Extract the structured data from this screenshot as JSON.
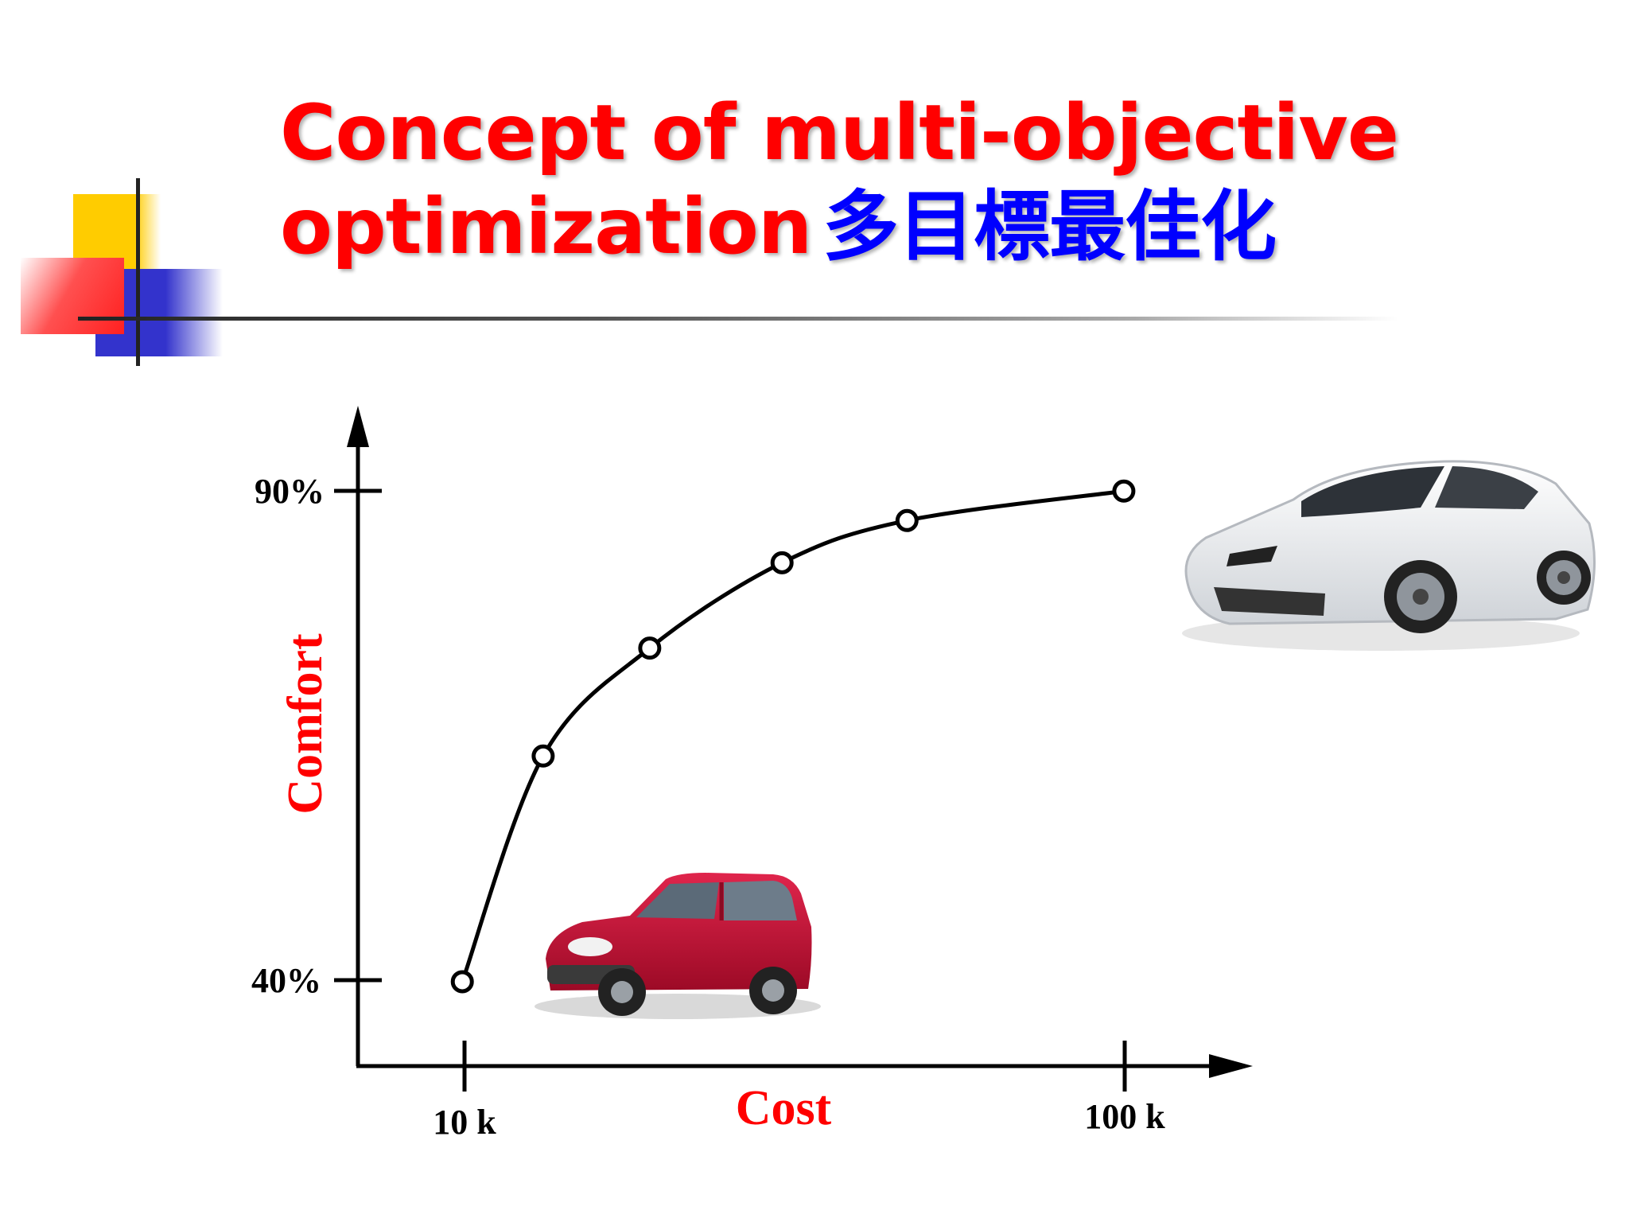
{
  "slide": {
    "title_line1": "Concept of multi-objective",
    "title_line2_en": "optimization",
    "title_line2_zh": "多目標最佳化",
    "title_color": "#ff0000",
    "title_zh_color": "#0000ff"
  },
  "decor": {
    "yellow": "#ffcc00",
    "red": "#ff3b3b",
    "blue": "#3333cc",
    "line": "#333333"
  },
  "images": {
    "budget_car": "red-hatchback-car",
    "luxury_car": "white-sports-car"
  },
  "chart_data": {
    "type": "line",
    "xlabel": "Cost",
    "ylabel": "Comfort",
    "x_ticks": [
      "10 k",
      "100 k"
    ],
    "y_ticks": [
      "40%",
      "90%"
    ],
    "x_unit": "k",
    "xlim": [
      -4.2,
      117
    ],
    "ylim": [
      31.4,
      98.7
    ],
    "series": [
      {
        "markers": "open-circle",
        "points": [
          {
            "x": 10,
            "y": 40
          },
          {
            "x": 21,
            "y": 63
          },
          {
            "x": 35.5,
            "y": 74
          },
          {
            "x": 53.5,
            "y": 82.7
          },
          {
            "x": 70.5,
            "y": 87
          },
          {
            "x": 100,
            "y": 90
          }
        ]
      }
    ],
    "label_color": "#ff0000",
    "axis_color": "#000000"
  }
}
